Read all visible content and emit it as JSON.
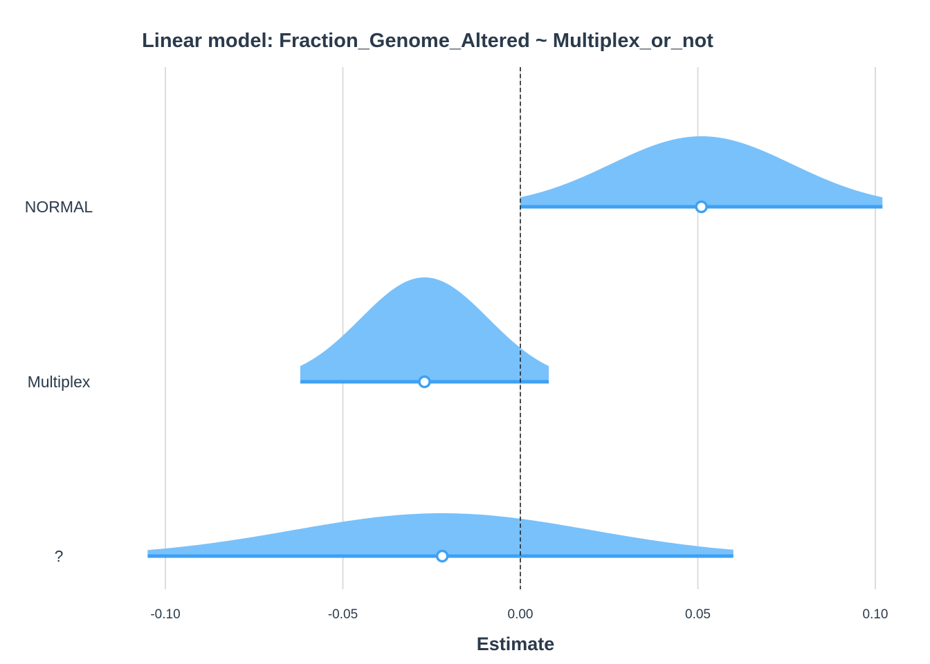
{
  "chart_data": {
    "type": "area",
    "subtype": "coefficient-density-plot",
    "title": "Linear model: Fraction_Genome_Altered ~ Multiplex_or_not",
    "xlabel": "Estimate",
    "ylabel": "",
    "xlim": [
      -0.11,
      0.105
    ],
    "xticks": [
      -0.1,
      -0.05,
      0.0,
      0.05,
      0.1
    ],
    "xtick_labels": [
      "-0.10",
      "-0.05",
      "0.00",
      "0.05",
      "0.10"
    ],
    "reference_line": 0,
    "grid": "vertical",
    "fill_color": "#79c1fa",
    "line_color": "#3da1f4",
    "reference_line_color": "#1a1a1a",
    "grid_color": "#dcdcdc",
    "series": [
      {
        "name": "NORMAL",
        "estimate": 0.051,
        "lower": 0.0,
        "upper": 0.102,
        "sd": 0.0255
      },
      {
        "name": "Multiplex",
        "estimate": -0.027,
        "lower": -0.062,
        "upper": 0.008,
        "sd": 0.018
      },
      {
        "name": "?",
        "estimate": -0.022,
        "lower": -0.105,
        "upper": 0.06,
        "sd": 0.042
      }
    ]
  }
}
